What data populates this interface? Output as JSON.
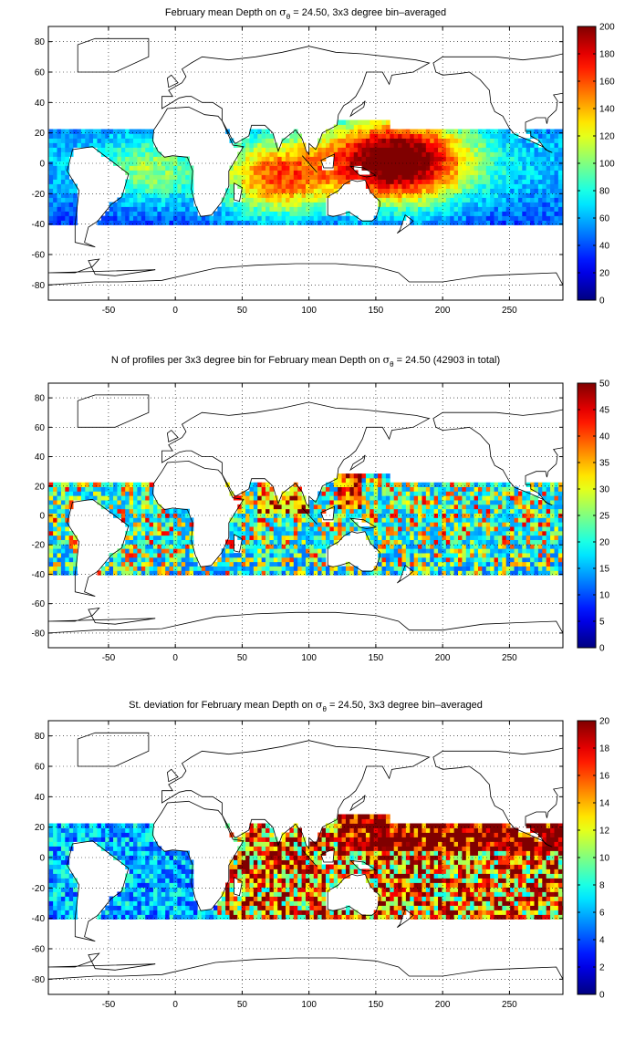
{
  "chart_data": [
    {
      "type": "heatmap",
      "title": {
        "prefix": "February mean Depth on ",
        "sigma": "σ",
        "sub": "θ",
        "suffix": " = 24.50, 3x3 degree bin–averaged"
      },
      "xlabel": "",
      "ylabel": "",
      "xlim": [
        -95,
        290
      ],
      "ylim": [
        -90,
        90
      ],
      "xticks": [
        "-50",
        "0",
        "50",
        "100",
        "150",
        "200",
        "250"
      ],
      "yticks": [
        "80",
        "60",
        "40",
        "20",
        "0",
        "-20",
        "-40",
        "-60",
        "-80"
      ],
      "colorbar": {
        "min": 0,
        "max": 200,
        "ticks": [
          "200",
          "180",
          "160",
          "140",
          "120",
          "100",
          "80",
          "60",
          "40",
          "20",
          "0"
        ]
      },
      "grid": true,
      "colormap": "jet",
      "field": "mean"
    },
    {
      "type": "heatmap",
      "title": {
        "prefix": "N of profiles per 3x3 degree bin for February mean Depth on ",
        "sigma": "σ",
        "sub": "θ",
        "suffix": " = 24.50 (42903 in total)"
      },
      "xlabel": "",
      "ylabel": "",
      "xlim": [
        -95,
        290
      ],
      "ylim": [
        -90,
        90
      ],
      "xticks": [
        "-50",
        "0",
        "50",
        "100",
        "150",
        "200",
        "250"
      ],
      "yticks": [
        "80",
        "60",
        "40",
        "20",
        "0",
        "-20",
        "-40",
        "-60",
        "-80"
      ],
      "colorbar": {
        "min": 0,
        "max": 50,
        "ticks": [
          "50",
          "45",
          "40",
          "35",
          "30",
          "25",
          "20",
          "15",
          "10",
          "5",
          "0"
        ]
      },
      "grid": true,
      "colormap": "jet",
      "field": "count"
    },
    {
      "type": "heatmap",
      "title": {
        "prefix": "St. deviation for February mean Depth on ",
        "sigma": "σ",
        "sub": "θ",
        "suffix": " = 24.50, 3x3 degree bin–averaged"
      },
      "xlabel": "",
      "ylabel": "",
      "xlim": [
        -95,
        290
      ],
      "ylim": [
        -90,
        90
      ],
      "xticks": [
        "-50",
        "0",
        "50",
        "100",
        "150",
        "200",
        "250"
      ],
      "yticks": [
        "80",
        "60",
        "40",
        "20",
        "0",
        "-20",
        "-40",
        "-60",
        "-80"
      ],
      "colorbar": {
        "min": 0,
        "max": 20,
        "ticks": [
          "20",
          "18",
          "16",
          "14",
          "12",
          "10",
          "8",
          "6",
          "4",
          "2",
          "0"
        ]
      },
      "grid": true,
      "colormap": "jet",
      "field": "std"
    }
  ]
}
